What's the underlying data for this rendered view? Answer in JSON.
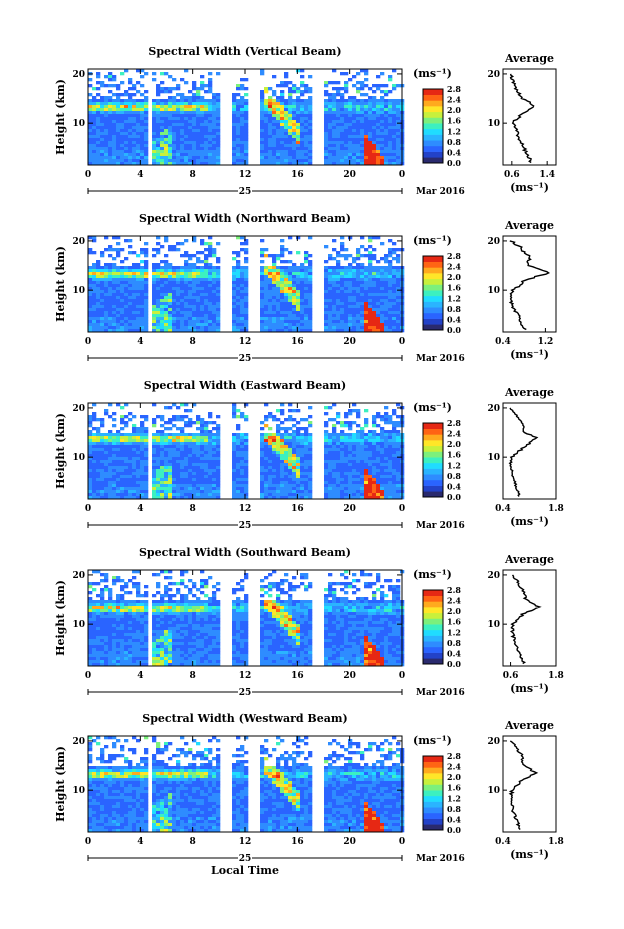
{
  "figure": {
    "local_time_label": "Local Time",
    "date_label": "Mar 2016",
    "day_label": "25",
    "unit_label": "(ms⁻¹)",
    "average_title": "Average",
    "height_label": "Height (km)"
  },
  "chart_data": [
    {
      "type": "heatmap",
      "title": "Spectral Width (Vertical Beam)",
      "xlabel": "",
      "ylabel": "Height (km)",
      "x_ticks": [
        "0",
        "4",
        "8",
        "12",
        "16",
        "20",
        "0"
      ],
      "xlim": [
        0,
        24
      ],
      "y_ticks": [
        "20",
        "10"
      ],
      "ylim": [
        1.5,
        21
      ],
      "colorbar_label": "(ms⁻¹)",
      "colorbar_ticks": [
        "2.8",
        "2.4",
        "2.0",
        "1.6",
        "1.2",
        "0.8",
        "0.4",
        "0.0"
      ],
      "colorbar_range": [
        0.0,
        2.8
      ],
      "data_gaps_hours": [
        [
          4.5,
          4.8
        ],
        [
          10.0,
          11.0
        ],
        [
          12.1,
          13.1
        ],
        [
          17.0,
          18.0
        ]
      ],
      "features": {
        "turbulent_layer_km": 13.5,
        "storm_window_hours": [
          20.8,
          22.5
        ]
      },
      "average": {
        "title": "Average",
        "xlabel": "(ms⁻¹)",
        "x_ticks": [
          "0.6",
          "1.4"
        ],
        "xlim": [
          0.4,
          1.6
        ],
        "y_ticks": [
          "20",
          "10"
        ],
        "heights_km": [
          2,
          4,
          6,
          8,
          10,
          12,
          13.5,
          15,
          17,
          19,
          20
        ],
        "values": [
          1.05,
          0.92,
          0.82,
          0.72,
          0.62,
          0.85,
          1.12,
          0.85,
          0.68,
          0.6,
          0.6
        ]
      }
    },
    {
      "type": "heatmap",
      "title": "Spectral Width (Northward Beam)",
      "xlabel": "",
      "ylabel": "Height (km)",
      "x_ticks": [
        "0",
        "4",
        "8",
        "12",
        "16",
        "20",
        "0"
      ],
      "xlim": [
        0,
        24
      ],
      "y_ticks": [
        "20",
        "10"
      ],
      "ylim": [
        1.5,
        21
      ],
      "colorbar_label": "(ms⁻¹)",
      "colorbar_ticks": [
        "2.8",
        "2.4",
        "2.0",
        "1.6",
        "1.2",
        "0.8",
        "0.4",
        "0.0"
      ],
      "colorbar_range": [
        0.0,
        2.8
      ],
      "data_gaps_hours": [
        [
          4.5,
          4.8
        ],
        [
          10.0,
          11.0
        ],
        [
          12.1,
          13.1
        ],
        [
          17.0,
          18.0
        ]
      ],
      "features": {
        "turbulent_layer_km": 13.5,
        "storm_window_hours": [
          20.8,
          22.5
        ]
      },
      "average": {
        "title": "Average",
        "xlabel": "(ms⁻¹)",
        "x_ticks": [
          "0.4",
          "1.2"
        ],
        "xlim": [
          0.4,
          1.4
        ],
        "y_ticks": [
          "20",
          "10"
        ],
        "heights_km": [
          2,
          4,
          6,
          8,
          10,
          12,
          13.5,
          15,
          17,
          19,
          20
        ],
        "values": [
          0.82,
          0.72,
          0.62,
          0.55,
          0.6,
          0.82,
          1.25,
          0.9,
          0.88,
          0.7,
          0.55
        ]
      }
    },
    {
      "type": "heatmap",
      "title": "Spectral Width (Eastward Beam)",
      "xlabel": "",
      "ylabel": "Height (km)",
      "x_ticks": [
        "0",
        "4",
        "8",
        "12",
        "16",
        "20",
        "0"
      ],
      "xlim": [
        0,
        24
      ],
      "y_ticks": [
        "20",
        "10"
      ],
      "ylim": [
        1.5,
        21
      ],
      "colorbar_label": "(ms⁻¹)",
      "colorbar_ticks": [
        "2.8",
        "2.4",
        "2.0",
        "1.6",
        "1.2",
        "0.8",
        "0.4",
        "0.0"
      ],
      "colorbar_range": [
        0.0,
        2.8
      ],
      "data_gaps_hours": [
        [
          4.5,
          4.8
        ],
        [
          10.0,
          11.0
        ],
        [
          12.1,
          13.1
        ],
        [
          17.0,
          18.0
        ]
      ],
      "features": {
        "turbulent_layer_km": 14.0,
        "storm_window_hours": [
          20.8,
          22.5
        ]
      },
      "average": {
        "title": "Average",
        "xlabel": "(ms⁻¹)",
        "x_ticks": [
          "0.4",
          "1.8"
        ],
        "xlim": [
          0.4,
          1.8
        ],
        "y_ticks": [
          "20",
          "10"
        ],
        "heights_km": [
          2,
          4,
          6,
          8,
          10,
          12,
          14,
          15,
          17,
          19,
          20
        ],
        "values": [
          0.85,
          0.75,
          0.68,
          0.6,
          0.62,
          0.95,
          1.3,
          0.95,
          0.9,
          0.72,
          0.6
        ]
      }
    },
    {
      "type": "heatmap",
      "title": "Spectral Width (Southward Beam)",
      "xlabel": "",
      "ylabel": "Height (km)",
      "x_ticks": [
        "0",
        "4",
        "8",
        "12",
        "16",
        "20",
        "0"
      ],
      "xlim": [
        0,
        24
      ],
      "y_ticks": [
        "20",
        "10"
      ],
      "ylim": [
        1.5,
        21
      ],
      "colorbar_label": "(ms⁻¹)",
      "colorbar_ticks": [
        "2.8",
        "2.4",
        "2.0",
        "1.6",
        "1.2",
        "0.8",
        "0.4",
        "0.0"
      ],
      "colorbar_range": [
        0.0,
        2.8
      ],
      "data_gaps_hours": [
        [
          4.5,
          4.8
        ],
        [
          10.0,
          11.0
        ],
        [
          12.1,
          13.1
        ],
        [
          17.0,
          18.0
        ]
      ],
      "features": {
        "turbulent_layer_km": 13.5,
        "storm_window_hours": [
          20.8,
          22.5
        ]
      },
      "average": {
        "title": "Average",
        "xlabel": "(ms⁻¹)",
        "x_ticks": [
          "0.6",
          "1.8"
        ],
        "xlim": [
          0.4,
          1.8
        ],
        "y_ticks": [
          "20",
          "10"
        ],
        "heights_km": [
          2,
          4,
          6,
          8,
          10,
          12,
          13.5,
          15,
          17,
          19,
          20
        ],
        "values": [
          0.95,
          0.85,
          0.72,
          0.66,
          0.65,
          0.92,
          1.35,
          1.0,
          0.92,
          0.75,
          0.65
        ]
      }
    },
    {
      "type": "heatmap",
      "title": "Spectral Width (Westward Beam)",
      "xlabel": "Local Time",
      "ylabel": "Height (km)",
      "x_ticks": [
        "0",
        "4",
        "8",
        "12",
        "16",
        "20",
        "0"
      ],
      "xlim": [
        0,
        24
      ],
      "y_ticks": [
        "20",
        "10"
      ],
      "ylim": [
        1.5,
        21
      ],
      "colorbar_label": "(ms⁻¹)",
      "colorbar_ticks": [
        "2.8",
        "2.4",
        "2.0",
        "1.6",
        "1.2",
        "0.8",
        "0.4",
        "0.0"
      ],
      "colorbar_range": [
        0.0,
        2.8
      ],
      "data_gaps_hours": [
        [
          4.5,
          4.8
        ],
        [
          10.0,
          11.0
        ],
        [
          12.1,
          13.1
        ],
        [
          17.0,
          18.0
        ]
      ],
      "features": {
        "turbulent_layer_km": 13.5,
        "storm_window_hours": [
          20.8,
          22.5
        ]
      },
      "average": {
        "title": "Average",
        "xlabel": "(ms⁻¹)",
        "x_ticks": [
          "0.4",
          "1.8"
        ],
        "xlim": [
          0.4,
          1.8
        ],
        "y_ticks": [
          "20",
          "10"
        ],
        "heights_km": [
          2,
          4,
          6,
          8,
          10,
          12,
          13.5,
          15,
          17,
          19,
          20
        ],
        "values": [
          0.85,
          0.75,
          0.66,
          0.6,
          0.64,
          0.9,
          1.28,
          0.95,
          0.9,
          0.72,
          0.62
        ]
      }
    }
  ],
  "colors": {
    "scale": [
      "#2a2a6e",
      "#2342c8",
      "#2a64ff",
      "#2e8cff",
      "#2ab4ff",
      "#20dcff",
      "#3cf0c0",
      "#7cf07c",
      "#c8f03c",
      "#ffe628",
      "#ffaa1e",
      "#ff6414",
      "#e62814"
    ],
    "axis": "#000000",
    "background": "#ffffff"
  }
}
